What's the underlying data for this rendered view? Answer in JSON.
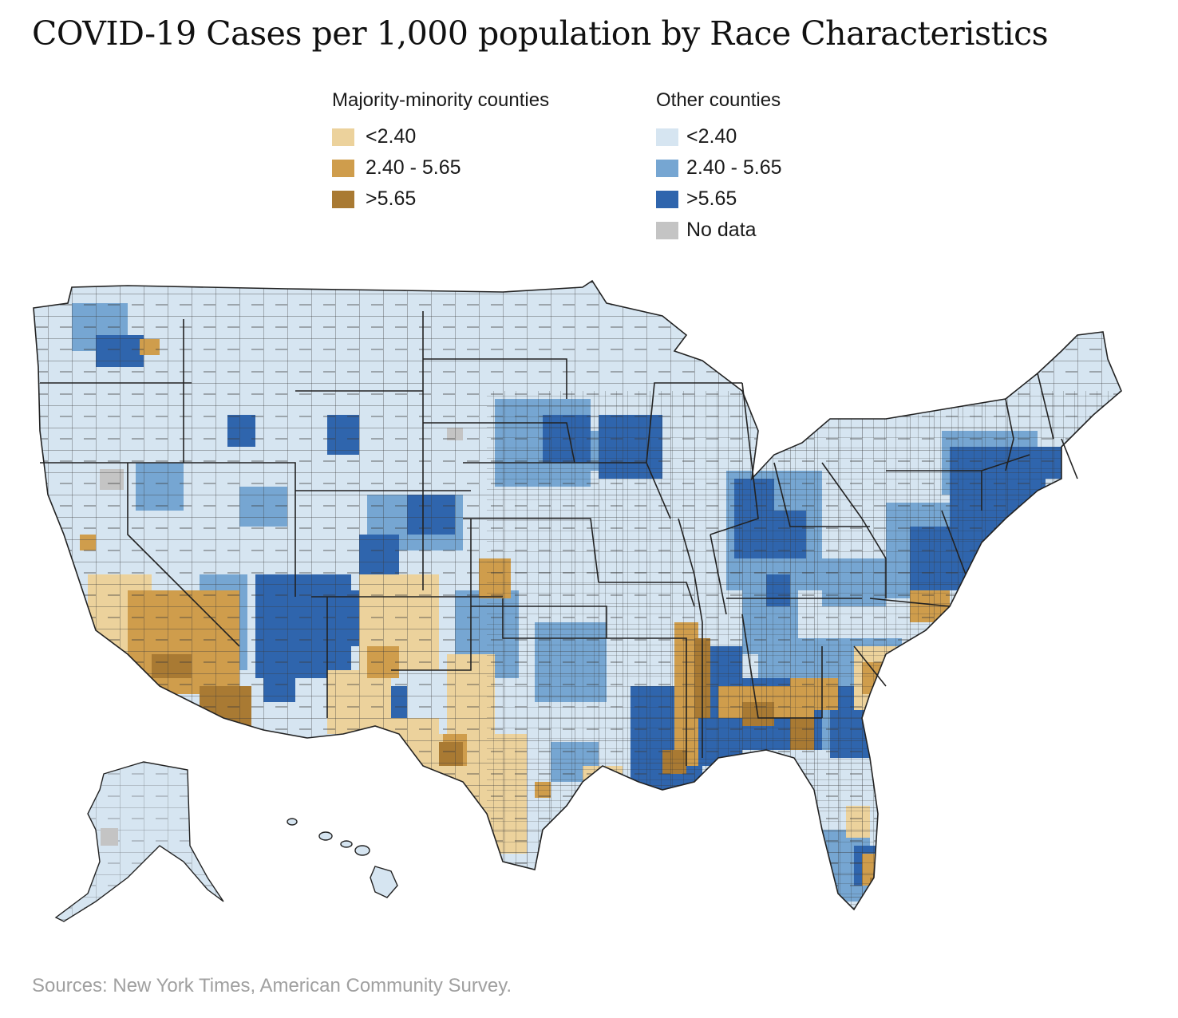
{
  "title": "COVID-19 Cases per 1,000 population by Race Characteristics",
  "legend": {
    "majority_minority": {
      "heading": "Majority-minority counties",
      "items": [
        {
          "label": "<2.40",
          "color": "#ecd29c"
        },
        {
          "label": "2.40 - 5.65",
          "color": "#cf9d4c"
        },
        {
          "label": ">5.65",
          "color": "#a97a33"
        }
      ]
    },
    "other": {
      "heading": "Other counties",
      "items": [
        {
          "label": "<2.40",
          "color": "#d6e5f1"
        },
        {
          "label": "2.40 - 5.65",
          "color": "#76a6d2"
        },
        {
          "label": ">5.65",
          "color": "#2f65ad"
        },
        {
          "label": "No data",
          "color": "#c4c4c4"
        }
      ]
    }
  },
  "map": {
    "region": "United States counties (including Alaska and Hawaii)",
    "base_color": "#d6e5f1",
    "border_color": "#2b2b2b"
  },
  "source": "Sources: New York Times, American Community Survey."
}
